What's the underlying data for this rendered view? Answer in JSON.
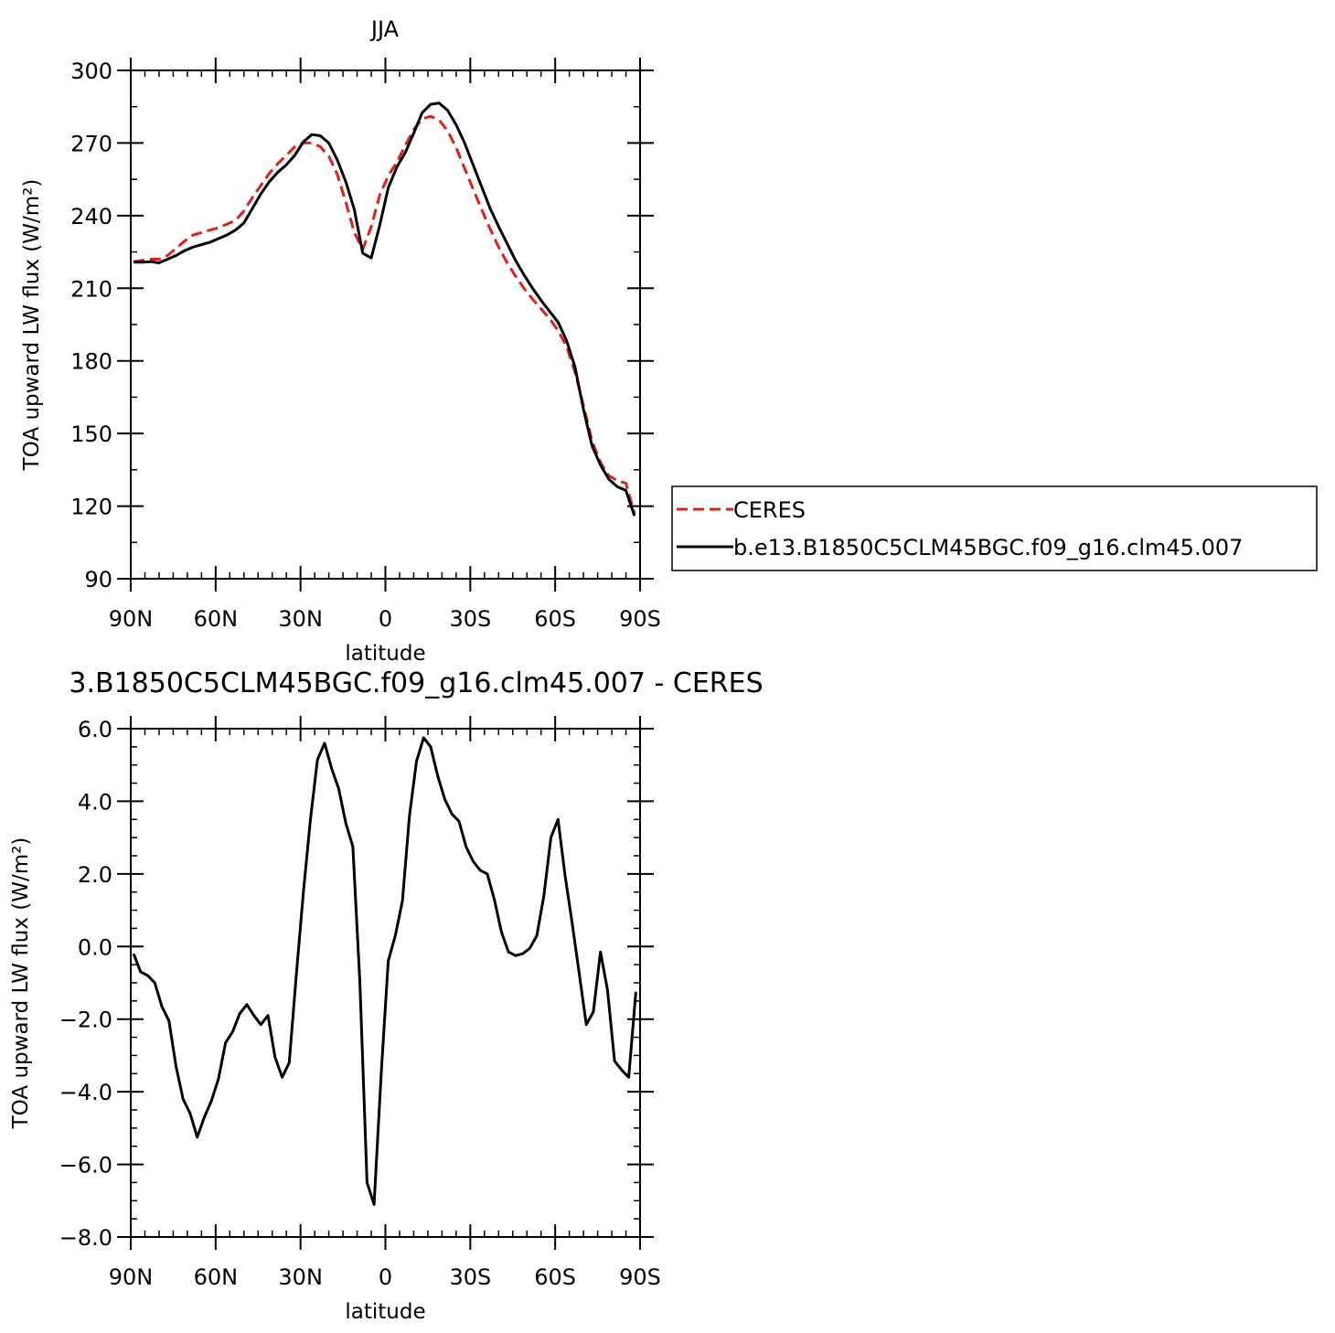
{
  "chart_data": [
    {
      "type": "line",
      "title": "JJA",
      "xlabel": "latitude",
      "ylabel": "TOA upward LW flux (W/m²)",
      "xlim": [
        90,
        -90
      ],
      "ylim": [
        90,
        300
      ],
      "x_ticks": [
        90,
        60,
        30,
        0,
        -30,
        -60,
        -90
      ],
      "x_tick_labels": [
        "90N",
        "60N",
        "30N",
        "0",
        "30S",
        "60S",
        "90S"
      ],
      "y_ticks": [
        90,
        120,
        150,
        180,
        210,
        240,
        270,
        300
      ],
      "y_tick_labels": [
        "90",
        "120",
        "150",
        "180",
        "210",
        "240",
        "270",
        "300"
      ],
      "legend_position": "right",
      "series": [
        {
          "name": "CERES",
          "color": "#e0201b",
          "dash": "dashed",
          "x": [
            89,
            86,
            83,
            80,
            77,
            74,
            71,
            68,
            65,
            62,
            59,
            56,
            53,
            50,
            47,
            44,
            41,
            38,
            35,
            32,
            29,
            26,
            23,
            20,
            17,
            14,
            11,
            8,
            5,
            2,
            -1,
            -4,
            -7,
            -10,
            -13,
            -16,
            -19,
            -22,
            -25,
            -28,
            -31,
            -34,
            -37,
            -40,
            -43,
            -46,
            -49,
            -52,
            -55,
            -58,
            -61,
            -64,
            -67,
            -70,
            -73,
            -76,
            -79,
            -82,
            -85,
            -88
          ],
          "values": [
            221.0,
            221.5,
            222.0,
            222.0,
            223.5,
            226.5,
            229.5,
            232.0,
            233.0,
            234.0,
            235.0,
            236.5,
            238.0,
            242.0,
            247.5,
            252.5,
            257.5,
            261.5,
            265.0,
            268.5,
            270.0,
            270.0,
            268.5,
            264.5,
            257.0,
            245.5,
            233.0,
            226.0,
            235.5,
            248.5,
            256.5,
            262.0,
            269.0,
            275.5,
            280.0,
            281.0,
            279.5,
            275.0,
            268.0,
            259.5,
            251.0,
            242.5,
            234.5,
            227.0,
            220.5,
            215.0,
            210.0,
            205.5,
            201.5,
            197.5,
            192.5,
            186.0,
            175.5,
            161.5,
            147.0,
            138.0,
            132.5,
            130.5,
            129.5,
            117.0
          ]
        },
        {
          "name": "b.e13.B1850C5CLM45BGC.f09_g16.clm45.007",
          "color": "#000000",
          "dash": "solid",
          "x": [
            89,
            86,
            83,
            80,
            77,
            74,
            71,
            68,
            65,
            62,
            59,
            56,
            53,
            50,
            47,
            44,
            41,
            38,
            35,
            32,
            29,
            26,
            23,
            20,
            17,
            14,
            11,
            8,
            5,
            2,
            -1,
            -4,
            -7,
            -10,
            -13,
            -16,
            -19,
            -22,
            -25,
            -28,
            -31,
            -34,
            -37,
            -40,
            -43,
            -46,
            -49,
            -52,
            -55,
            -58,
            -61,
            -64,
            -67,
            -70,
            -73,
            -76,
            -79,
            -82,
            -85,
            -88
          ],
          "values": [
            220.8,
            220.8,
            221.0,
            220.5,
            222.0,
            223.5,
            225.5,
            227.0,
            228.0,
            229.0,
            230.5,
            232.0,
            234.0,
            237.0,
            243.0,
            249.0,
            254.0,
            258.0,
            261.0,
            265.0,
            270.5,
            273.5,
            273.0,
            270.0,
            263.0,
            254.0,
            242.5,
            224.5,
            222.5,
            236.0,
            251.5,
            260.0,
            266.0,
            274.0,
            282.5,
            286.0,
            286.5,
            283.5,
            277.5,
            270.0,
            261.0,
            252.0,
            243.0,
            235.5,
            228.5,
            221.5,
            215.5,
            210.0,
            205.0,
            200.5,
            196.0,
            188.5,
            177.5,
            160.0,
            145.0,
            137.0,
            131.0,
            128.0,
            126.5,
            116.0
          ]
        }
      ]
    },
    {
      "type": "line",
      "title": "3.B1850C5CLM45BGC.f09_g16.clm45.007 - CERES",
      "xlabel": "latitude",
      "ylabel": "TOA upward LW flux (W/m²)",
      "xlim": [
        90,
        -90
      ],
      "ylim": [
        -8,
        6
      ],
      "x_ticks": [
        90,
        60,
        30,
        0,
        -30,
        -60,
        -90
      ],
      "x_tick_labels": [
        "90N",
        "60N",
        "30N",
        "0",
        "30S",
        "60S",
        "90S"
      ],
      "y_ticks": [
        -8,
        -6,
        -4,
        -2,
        0,
        2,
        4,
        6
      ],
      "y_tick_labels": [
        "−8.0",
        "−6.0",
        "−4.0",
        "−2.0",
        "0.0",
        "2.0",
        "4.0",
        "6.0"
      ],
      "series": [
        {
          "color": "#000000",
          "dash": "solid",
          "x": [
            89,
            86.5,
            84,
            81.5,
            79,
            76.5,
            74,
            71.5,
            69,
            66.5,
            64,
            61.5,
            59,
            56.5,
            54,
            51.5,
            49,
            46.5,
            44,
            41.5,
            39,
            36.5,
            34,
            31.5,
            29,
            26.5,
            24,
            21.5,
            19,
            16.5,
            14,
            11.5,
            9,
            6.5,
            4,
            1.5,
            -1,
            -3.5,
            -6,
            -8.5,
            -11,
            -13.5,
            -16,
            -18.5,
            -21,
            -23.5,
            -26,
            -28.5,
            -31,
            -33.5,
            -36,
            -38.5,
            -41,
            -43.5,
            -46,
            -48.5,
            -51,
            -53.5,
            -56,
            -58.5,
            -61,
            -63.5,
            -66,
            -68.5,
            -71,
            -73.5,
            -76,
            -78.5,
            -81,
            -83.5,
            -86,
            -88.5
          ],
          "values": [
            -0.2,
            -0.7,
            -0.8,
            -1.0,
            -1.65,
            -2.05,
            -3.3,
            -4.2,
            -4.6,
            -5.25,
            -4.7,
            -4.25,
            -3.65,
            -2.65,
            -2.35,
            -1.85,
            -1.6,
            -1.9,
            -2.15,
            -1.9,
            -3.05,
            -3.6,
            -3.2,
            -0.8,
            1.5,
            3.5,
            5.15,
            5.6,
            4.9,
            4.35,
            3.4,
            2.75,
            -1.0,
            -6.5,
            -7.1,
            -3.5,
            -0.4,
            0.3,
            1.25,
            3.6,
            5.1,
            5.75,
            5.5,
            4.7,
            4.05,
            3.65,
            3.45,
            2.75,
            2.35,
            2.1,
            2.0,
            1.3,
            0.4,
            -0.15,
            -0.25,
            -0.2,
            -0.05,
            0.3,
            1.4,
            3.0,
            3.5,
            1.95,
            0.65,
            -0.75,
            -2.15,
            -1.8,
            -0.15,
            -1.2,
            -3.15,
            -3.4,
            -3.6,
            -1.25
          ]
        }
      ]
    }
  ]
}
